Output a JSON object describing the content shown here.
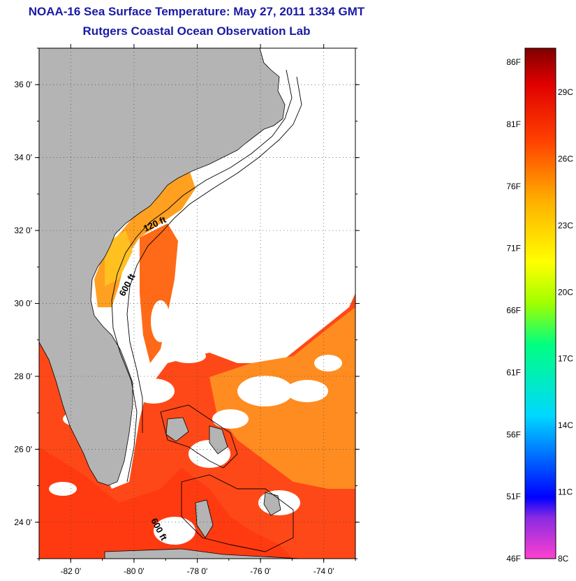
{
  "title": {
    "line1": "NOAA-16 Sea Surface Temperature:  May 27, 2011 1334 GMT",
    "line2": "Rutgers Coastal Ocean Observation Lab"
  },
  "map": {
    "lat_range": [
      23,
      37
    ],
    "lon_range": [
      -83,
      -73
    ],
    "lat_ticks": [
      {
        "value": 24,
        "label": "24 0'"
      },
      {
        "value": 26,
        "label": "26 0'"
      },
      {
        "value": 28,
        "label": "28 0'"
      },
      {
        "value": 30,
        "label": "30 0'"
      },
      {
        "value": 32,
        "label": "32 0'"
      },
      {
        "value": 34,
        "label": "34 0'"
      },
      {
        "value": 36,
        "label": "36 0'"
      }
    ],
    "lon_ticks": [
      {
        "value": -82,
        "label": "-82 0'"
      },
      {
        "value": -80,
        "label": "-80 0'"
      },
      {
        "value": -78,
        "label": "-78 0'"
      },
      {
        "value": -76,
        "label": "-76 0'"
      },
      {
        "value": -74,
        "label": "-74 0'"
      }
    ],
    "contour_labels": [
      {
        "text": "120 ft"
      },
      {
        "text": "600 ft"
      },
      {
        "text": "600 ft"
      }
    ],
    "colors": {
      "land": "#b4b4b4",
      "cloud": "#ffffff",
      "warm_water": "#ff3a10",
      "mid_water": "#ff8c20",
      "cool_water": "#ffc020"
    }
  },
  "colorbar": {
    "fahrenheit_labels": [
      "86F",
      "81F",
      "76F",
      "71F",
      "66F",
      "61F",
      "56F",
      "51F",
      "46F"
    ],
    "celsius_labels": [
      "29C",
      "26C",
      "23C",
      "20C",
      "17C",
      "14C",
      "11C",
      "8C"
    ],
    "gradient_stops": [
      {
        "offset": 0,
        "color": "#ff40d0"
      },
      {
        "offset": 0.08,
        "color": "#8a2be2"
      },
      {
        "offset": 0.12,
        "color": "#0000ff"
      },
      {
        "offset": 0.28,
        "color": "#00d8ff"
      },
      {
        "offset": 0.42,
        "color": "#00ff80"
      },
      {
        "offset": 0.5,
        "color": "#a0ff00"
      },
      {
        "offset": 0.58,
        "color": "#ffff00"
      },
      {
        "offset": 0.7,
        "color": "#ffb000"
      },
      {
        "offset": 0.82,
        "color": "#ff4000"
      },
      {
        "offset": 0.93,
        "color": "#e00000"
      },
      {
        "offset": 1,
        "color": "#800000"
      }
    ]
  }
}
